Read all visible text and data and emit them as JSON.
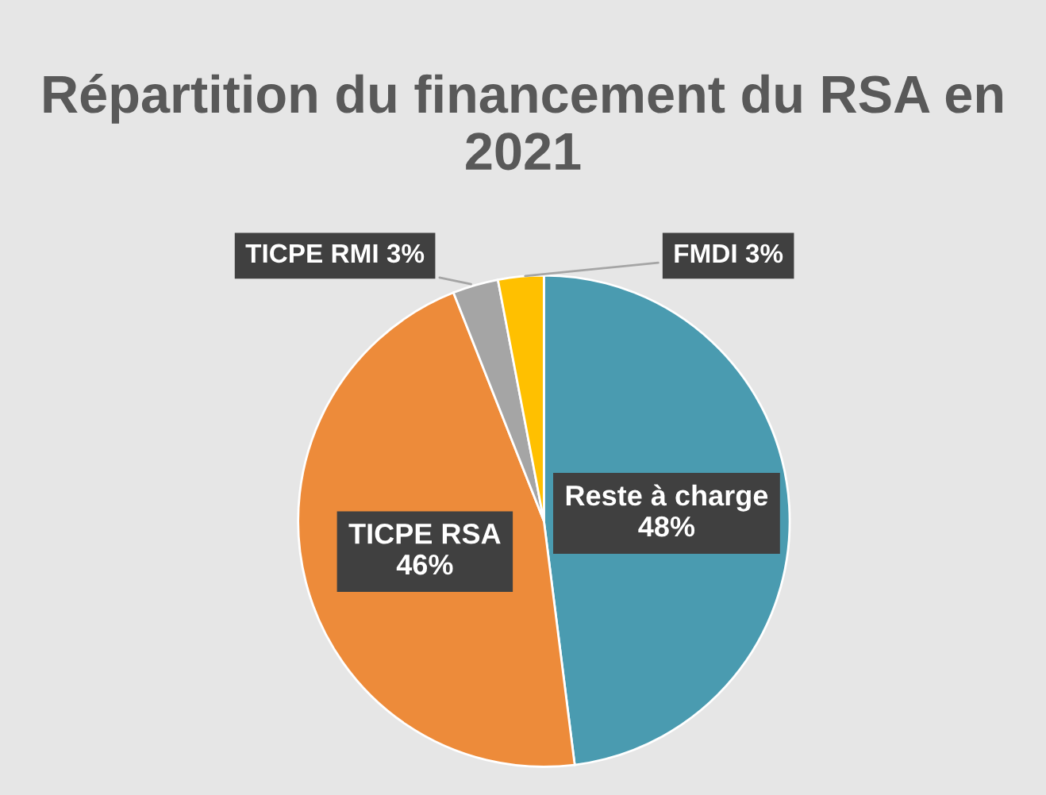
{
  "chart_data": {
    "type": "pie",
    "title": "Répartition du financement du RSA en 2021",
    "categories": [
      "Reste à charge",
      "TICPE RSA",
      "TICPE RMI",
      "FMDI"
    ],
    "values": [
      48,
      46,
      3,
      3
    ],
    "value_labels": [
      "48%",
      "46%",
      "3%",
      "3%"
    ],
    "colors": [
      "#4a9bb0",
      "#ed8b3a",
      "#a5a5a5",
      "#ffc000"
    ],
    "legend": false
  }
}
